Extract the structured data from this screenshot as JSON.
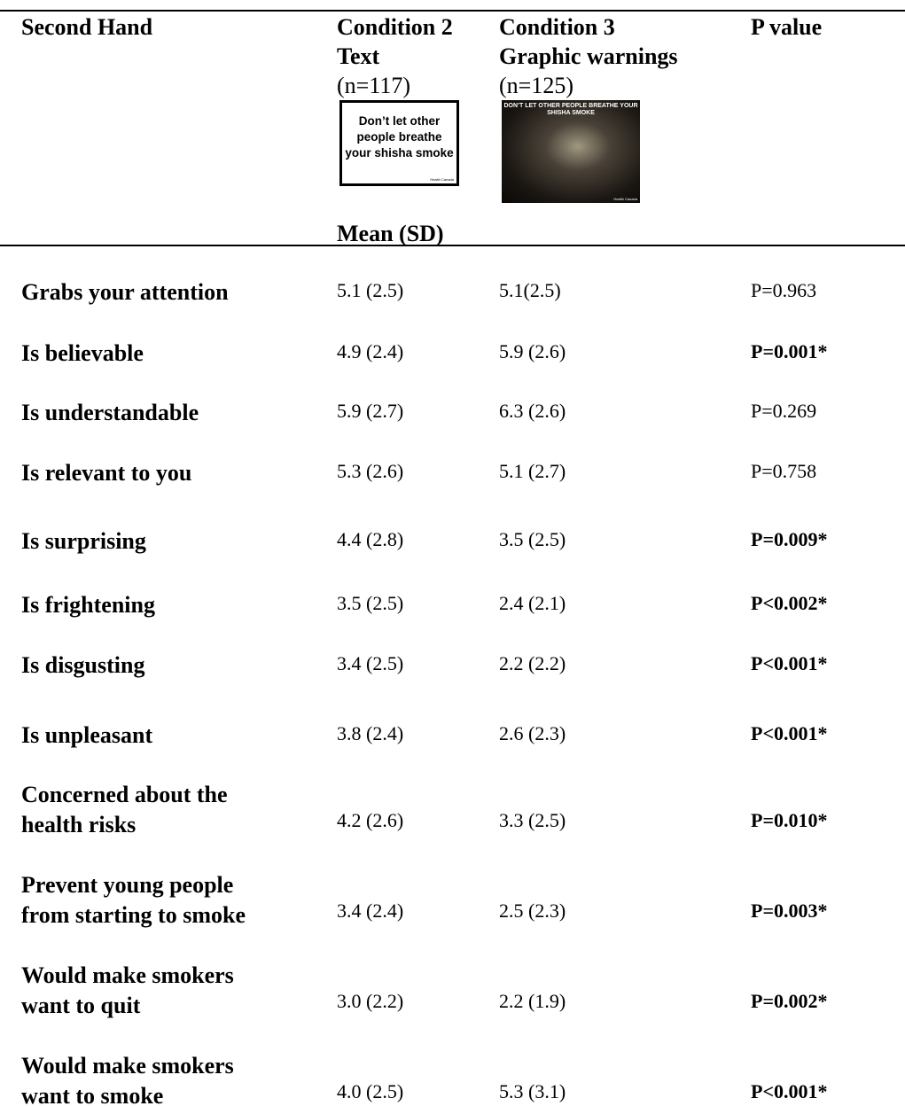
{
  "header": {
    "col1": "Second Hand",
    "col2": {
      "title": "Condition 2",
      "subtitle": "Text",
      "n": "(n=117)",
      "image_text": "Don’t let other people breathe your shisha smoke",
      "image_credit": "Health Canada"
    },
    "col3": {
      "title": "Condition 3",
      "subtitle": "Graphic warnings",
      "n": "(n=125)",
      "image_text": "DON’T LET OTHER PEOPLE BREATHE YOUR SHISHA SMOKE",
      "image_credit": "Health Canada"
    },
    "col4": "P value",
    "stat": "Mean (SD)"
  },
  "table": {
    "rows": [
      [
        [
          "Grabs your attention"
        ],
        "5.1 (2.5)",
        "5.1(2.5)",
        "P=0.963"
      ],
      [
        [
          "Is believable"
        ],
        "4.9 (2.4)",
        "5.9 (2.6)",
        "P=0.001*"
      ],
      [
        [
          "Is understandable"
        ],
        "5.9 (2.7)",
        "6.3 (2.6)",
        "P=0.269"
      ],
      [
        [
          "Is relevant to you"
        ],
        "5.3 (2.6)",
        "5.1 (2.7)",
        "P=0.758"
      ],
      [
        [
          "Is surprising"
        ],
        "4.4 (2.8)",
        "3.5 (2.5)",
        "P=0.009*"
      ],
      [
        [
          "Is frightening"
        ],
        "3.5 (2.5)",
        "2.4 (2.1)",
        "P<0.002*"
      ],
      [
        [
          "Is disgusting"
        ],
        "3.4 (2.5)",
        "2.2 (2.2)",
        "P<0.001*"
      ],
      [
        [
          "Is unpleasant"
        ],
        "3.8 (2.4)",
        "2.6 (2.3)",
        "P<0.001*"
      ],
      [
        [
          "Concerned about the",
          "health risks"
        ],
        "4.2 (2.6)",
        "3.3 (2.5)",
        "P=0.010*"
      ],
      [
        [
          "Prevent young people",
          "from starting to smoke"
        ],
        "3.4 (2.4)",
        "2.5 (2.3)",
        "P=0.003*"
      ],
      [
        [
          "Would make smokers",
          "want to quit"
        ],
        "3.0 (2.2)",
        "2.2 (1.9)",
        "P=0.002*"
      ],
      [
        [
          "Would make smokers",
          "want to smoke"
        ],
        "4.0 (2.5)",
        "5.3 (3.1)",
        "P<0.001*"
      ]
    ]
  }
}
